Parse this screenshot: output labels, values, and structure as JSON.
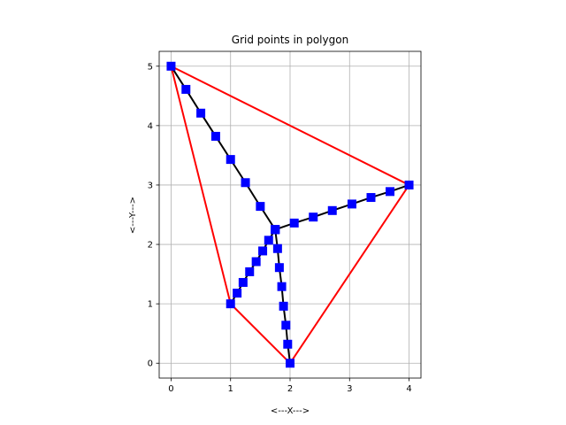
{
  "chart_data": {
    "type": "line",
    "title": "Grid points in polygon",
    "xlabel": "<---X--->",
    "ylabel": "<---Y--->",
    "xlim": [
      -0.2,
      4.2
    ],
    "ylim": [
      -0.25,
      5.25
    ],
    "xticks": [
      0,
      1,
      2,
      3,
      4
    ],
    "yticks": [
      0,
      1,
      2,
      3,
      4,
      5
    ],
    "grid": true,
    "colors": {
      "polygon": "#ff0000",
      "lines": "#000000",
      "points": "#0000ff"
    },
    "polygon": {
      "x": [
        0,
        4,
        2,
        1,
        0
      ],
      "y": [
        5,
        3,
        0,
        1,
        5
      ]
    },
    "center": {
      "x": 1.75,
      "y": 2.25
    },
    "spokes": [
      {
        "x": [
          1.75,
          1.5,
          1.25,
          1.0,
          0.75,
          0.5,
          0.25,
          0.0
        ],
        "y": [
          2.25,
          2.64,
          3.04,
          3.43,
          3.82,
          4.21,
          4.61,
          5.0
        ]
      },
      {
        "x": [
          1.75,
          2.07,
          2.39,
          2.71,
          3.04,
          3.36,
          3.68,
          4.0
        ],
        "y": [
          2.25,
          2.36,
          2.46,
          2.57,
          2.68,
          2.79,
          2.89,
          3.0
        ]
      },
      {
        "x": [
          1.75,
          1.79,
          1.82,
          1.86,
          1.89,
          1.93,
          1.96,
          2.0
        ],
        "y": [
          2.25,
          1.93,
          1.61,
          1.29,
          0.96,
          0.64,
          0.32,
          0.0
        ]
      },
      {
        "x": [
          1.75,
          1.64,
          1.54,
          1.43,
          1.32,
          1.21,
          1.11,
          1.0
        ],
        "y": [
          2.25,
          2.07,
          1.89,
          1.71,
          1.54,
          1.36,
          1.18,
          1.0
        ]
      }
    ]
  }
}
